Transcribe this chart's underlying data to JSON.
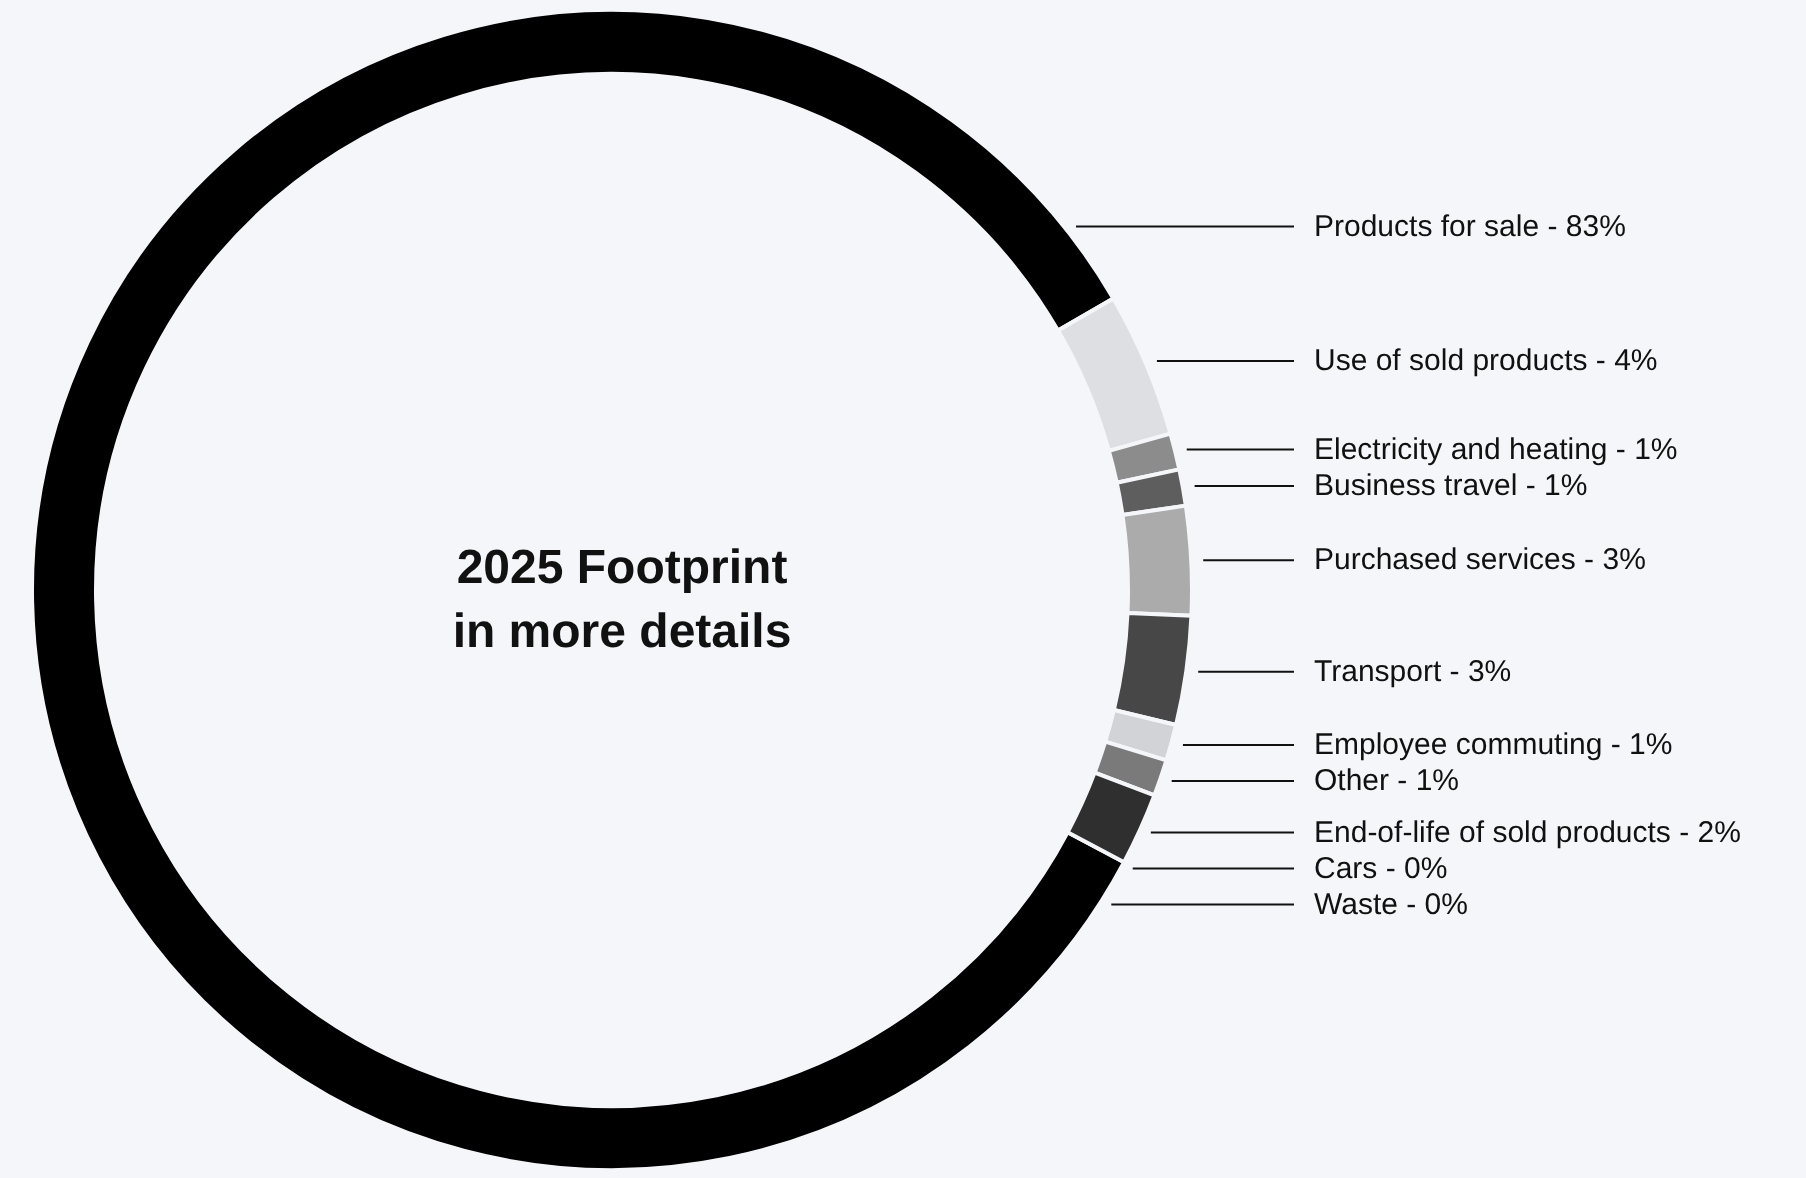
{
  "chart_data": {
    "type": "donut",
    "title": "2025 Footprint\nin more details",
    "categories": [
      "Products for sale - 83%",
      "Use of sold products - 4%",
      "Electricity and heating - 1%",
      "Business travel - 1%",
      "Purchased services - 3%",
      "Transport - 3%",
      "Employee commuting - 1%",
      "Other - 1%",
      "End-of-life of sold products - 2%",
      "Cars - 0%",
      "Waste - 0%"
    ],
    "values": [
      83,
      4,
      1,
      1,
      3,
      3,
      1,
      1,
      2,
      0,
      0
    ],
    "colors": [
      "#000000",
      "#dedfe2",
      "#8c8c8c",
      "#5e5e5e",
      "#ababab",
      "#474747",
      "#d2d3d6",
      "#7a7a7a",
      "#2f2f2f",
      "#dedfe2",
      "#eeeeee"
    ]
  }
}
